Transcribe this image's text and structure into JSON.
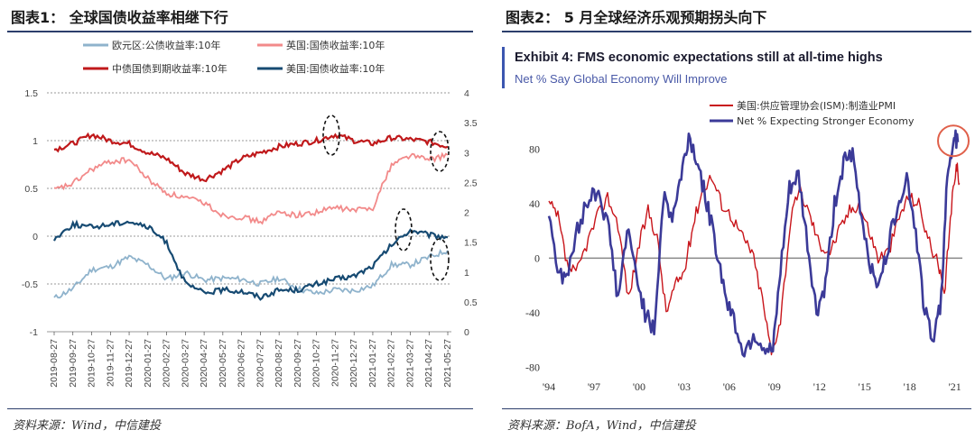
{
  "left": {
    "figure_title": "图表1：  全球国债收益率相继下行",
    "source": "资料来源：Wind，中信建投"
  },
  "right": {
    "figure_title": "图表2：  5 月全球经济乐观预期拐头向下",
    "source": "资料来源：BofA，Wind，中信建投"
  },
  "chart_data": [
    {
      "type": "line",
      "legend": [
        "欧元区:公债收益率:10年",
        "英国:国债收益率:10年",
        "中债国债到期收益率:10年",
        "美国:国债收益率:10年"
      ],
      "x_ticks": [
        "2019-08-27",
        "2019-09-27",
        "2019-10-27",
        "2019-11-27",
        "2019-12-27",
        "2020-01-27",
        "2020-02-27",
        "2020-03-27",
        "2020-04-27",
        "2020-05-27",
        "2020-06-27",
        "2020-07-27",
        "2020-08-27",
        "2020-09-27",
        "2020-10-27",
        "2020-11-27",
        "2020-12-27",
        "2021-01-27",
        "2021-02-27",
        "2021-03-27",
        "2021-04-27",
        "2021-05-27"
      ],
      "y_left_ticks": [
        "1.5",
        "1",
        "0.5",
        "0",
        "-0.5",
        "-1"
      ],
      "y_left_range": [
        -1,
        1.5
      ],
      "y_right_ticks": [
        "4",
        "3.5",
        "3",
        "2.5",
        "2",
        "1.5",
        "1",
        "0.5",
        "0"
      ],
      "y_right_range": [
        0,
        4
      ],
      "grid": "horizontal dashed",
      "series": [
        {
          "name": "欧元区:公债收益率:10年",
          "axis": "left",
          "color": "#8fb3cc",
          "values": [
            -0.65,
            -0.55,
            -0.35,
            -0.32,
            -0.22,
            -0.3,
            -0.45,
            -0.38,
            -0.46,
            -0.44,
            -0.45,
            -0.5,
            -0.44,
            -0.55,
            -0.6,
            -0.56,
            -0.57,
            -0.52,
            -0.3,
            -0.3,
            -0.22,
            -0.15
          ]
        },
        {
          "name": "英国:国债收益率:10年",
          "axis": "left",
          "color": "#f28a8a",
          "values": [
            0.48,
            0.55,
            0.7,
            0.78,
            0.8,
            0.6,
            0.45,
            0.4,
            0.35,
            0.22,
            0.2,
            0.15,
            0.25,
            0.22,
            0.25,
            0.3,
            0.27,
            0.3,
            0.75,
            0.85,
            0.8,
            0.85
          ]
        },
        {
          "name": "中债国债到期收益率:10年",
          "axis": "right",
          "color": "#c0191b",
          "values": [
            3.05,
            3.15,
            3.3,
            3.2,
            3.15,
            3.0,
            2.9,
            2.65,
            2.55,
            2.7,
            2.9,
            3.0,
            3.1,
            3.15,
            3.2,
            3.3,
            3.2,
            3.15,
            3.25,
            3.22,
            3.18,
            3.1
          ]
        },
        {
          "name": "美国:国债收益率:10年",
          "axis": "right",
          "color": "#164a72",
          "values": [
            1.55,
            1.8,
            1.75,
            1.8,
            1.85,
            1.75,
            1.5,
            0.8,
            0.65,
            0.7,
            0.68,
            0.58,
            0.7,
            0.7,
            0.8,
            0.88,
            0.93,
            1.1,
            1.45,
            1.7,
            1.62,
            1.58
          ]
        }
      ]
    },
    {
      "type": "line",
      "title": "Exhibit 4: FMS economic expectations still at all-time highs",
      "subtitle": "Net % Say Global Economy Will Improve",
      "legend": [
        "美国:供应管理协会(ISM):制造业PMI",
        "Net % Expecting Stronger Economy"
      ],
      "x_ticks": [
        "'94",
        "'97",
        "'00",
        "'03",
        "'06",
        "'09",
        "'12",
        "'15",
        "'18",
        "'21"
      ],
      "y_ticks": [
        "80",
        "40",
        "0",
        "-40",
        "-80"
      ],
      "y_range": [
        -85,
        100
      ],
      "x_range": [
        1994,
        2021.5
      ],
      "series": [
        {
          "name": "美国:供应管理协会(ISM):制造业PMI",
          "color": "#c8141a",
          "x": [
            1994,
            1994.6,
            1995.2,
            1995.8,
            1996.5,
            1997.2,
            1997.9,
            1998.6,
            1999.3,
            1999.9,
            2000.6,
            2001.2,
            2001.8,
            2002.4,
            2003.0,
            2003.6,
            2004.2,
            2004.8,
            2005.5,
            2006.2,
            2006.9,
            2007.5,
            2008.2,
            2008.8,
            2009.4,
            2010.1,
            2010.7,
            2011.4,
            2012.0,
            2012.7,
            2013.3,
            2014.0,
            2014.6,
            2015.3,
            2015.9,
            2016.6,
            2017.3,
            2017.9,
            2018.6,
            2019.2,
            2019.9,
            2020.3,
            2020.7,
            2021.1,
            2021.3
          ],
          "y": [
            40,
            30,
            -5,
            -12,
            10,
            30,
            45,
            25,
            -30,
            5,
            35,
            15,
            -40,
            -20,
            -10,
            25,
            50,
            60,
            40,
            30,
            15,
            5,
            -30,
            -70,
            -45,
            30,
            50,
            30,
            10,
            5,
            20,
            35,
            40,
            20,
            0,
            5,
            30,
            45,
            40,
            15,
            -5,
            -30,
            30,
            70,
            55
          ]
        },
        {
          "name": "Net % Expecting Stronger Economy",
          "color": "#3b3a98",
          "x": [
            1994,
            1994.7,
            1995.3,
            1996.0,
            1996.7,
            1997.3,
            1998.0,
            1998.6,
            1999.2,
            1999.8,
            2000.4,
            2001.0,
            2001.6,
            2002.2,
            2002.8,
            2003.3,
            2003.9,
            2004.5,
            2005.1,
            2005.7,
            2006.3,
            2007.0,
            2007.6,
            2008.3,
            2008.9,
            2009.4,
            2010.0,
            2010.6,
            2011.2,
            2011.8,
            2012.4,
            2013.0,
            2013.6,
            2014.2,
            2014.8,
            2015.4,
            2016.0,
            2016.6,
            2017.2,
            2017.8,
            2018.4,
            2019.0,
            2019.6,
            2020.1,
            2020.5,
            2020.9,
            2021.2
          ],
          "y": [
            35,
            -15,
            -10,
            25,
            45,
            50,
            20,
            -30,
            20,
            -10,
            -40,
            -55,
            45,
            30,
            60,
            90,
            70,
            40,
            10,
            -25,
            -45,
            -70,
            -55,
            -65,
            -70,
            -10,
            50,
            60,
            10,
            -40,
            -20,
            40,
            70,
            75,
            30,
            -5,
            -20,
            10,
            40,
            60,
            20,
            -40,
            -60,
            -30,
            60,
            90,
            85
          ]
        }
      ]
    }
  ]
}
